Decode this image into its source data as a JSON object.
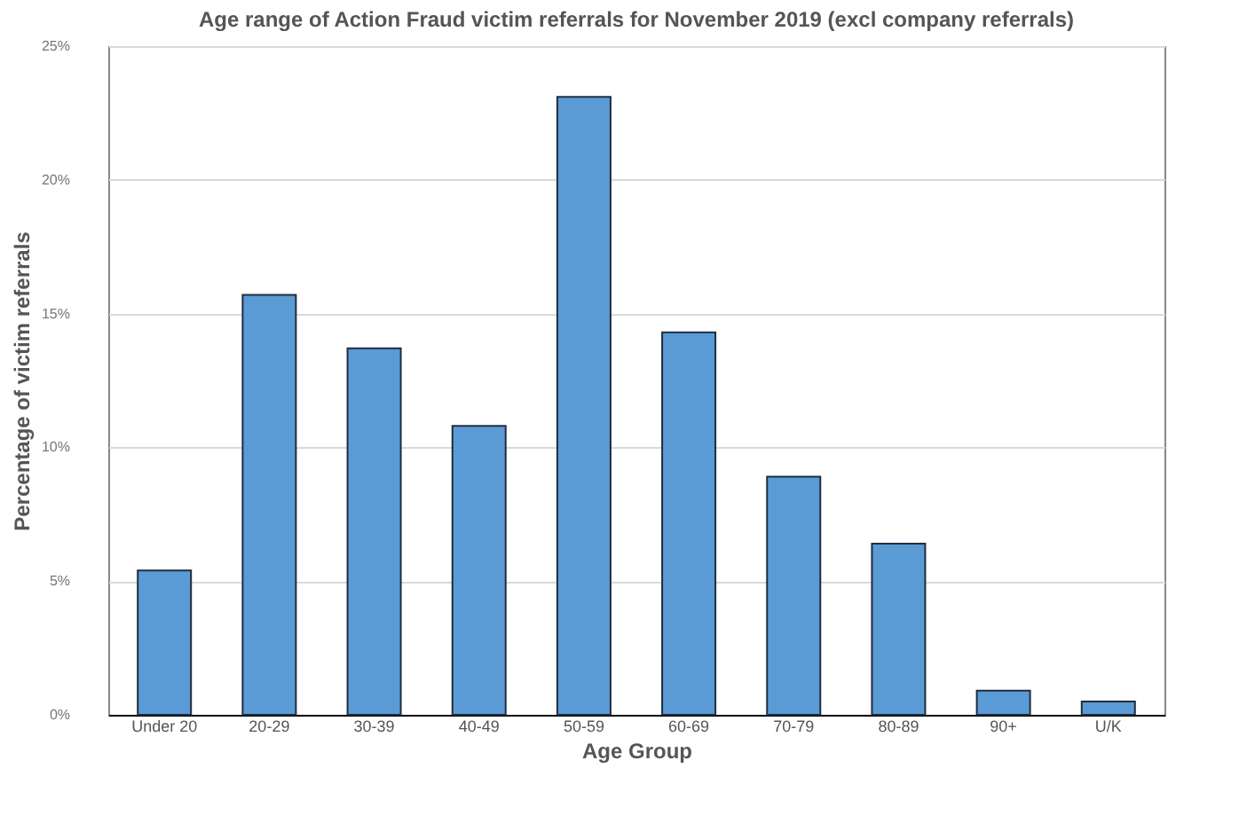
{
  "chart_data": {
    "type": "bar",
    "title": "Age range of Action Fraud victim referrals for November 2019 (excl company referrals)",
    "xlabel": "Age Group",
    "ylabel": "Percentage of victim referrals",
    "categories": [
      "Under 20",
      "20-29",
      "30-39",
      "40-49",
      "50-59",
      "60-69",
      "70-79",
      "80-89",
      "90+",
      "U/K"
    ],
    "values": [
      5.4,
      15.7,
      13.7,
      10.8,
      23.1,
      14.3,
      8.9,
      6.4,
      0.9,
      0.5
    ],
    "color": "#5b9bd5",
    "ylim": [
      0,
      25
    ],
    "yticks": [
      {
        "value": 0,
        "label": "0%"
      },
      {
        "value": 5,
        "label": "5%"
      },
      {
        "value": 10,
        "label": "10%"
      },
      {
        "value": 15,
        "label": "15%"
      },
      {
        "value": 20,
        "label": "20%"
      },
      {
        "value": 25,
        "label": "25%"
      }
    ],
    "grid": "y"
  }
}
